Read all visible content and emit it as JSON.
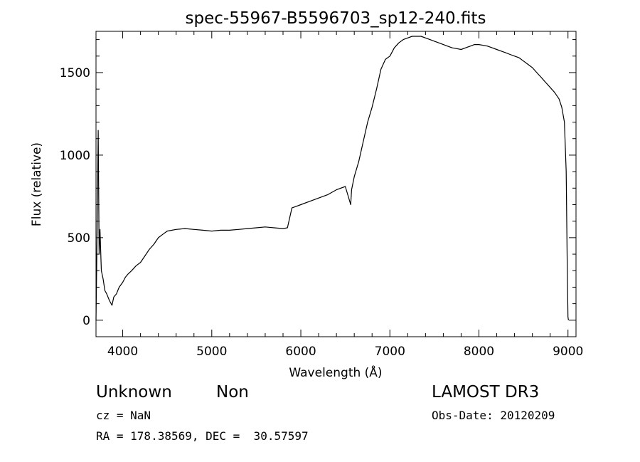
{
  "chart_data": {
    "type": "line",
    "title": "spec-55967-B5596703_sp12-240.fits",
    "xlabel": "Wavelength (Å)",
    "ylabel": "Flux (relative)",
    "xlim": [
      3700,
      9090
    ],
    "ylim": [
      -100,
      1750
    ],
    "xticks": [
      4000,
      5000,
      6000,
      7000,
      8000,
      9000
    ],
    "yticks": [
      0,
      500,
      1000,
      1500
    ],
    "series": [
      {
        "name": "flux",
        "x": [
          3700,
          3715,
          3725,
          3735,
          3745,
          3760,
          3780,
          3800,
          3820,
          3850,
          3880,
          3900,
          3930,
          3960,
          4000,
          4030,
          4060,
          4100,
          4150,
          4200,
          4250,
          4300,
          4350,
          4400,
          4450,
          4500,
          4600,
          4700,
          4800,
          4900,
          5000,
          5100,
          5200,
          5300,
          5400,
          5500,
          5600,
          5700,
          5800,
          5850,
          5900,
          5950,
          6000,
          6100,
          6200,
          6300,
          6400,
          6500,
          6560,
          6570,
          6600,
          6650,
          6700,
          6750,
          6800,
          6850,
          6900,
          6950,
          7000,
          7050,
          7100,
          7150,
          7200,
          7250,
          7300,
          7350,
          7400,
          7450,
          7500,
          7550,
          7600,
          7650,
          7700,
          7750,
          7800,
          7850,
          7900,
          7950,
          8000,
          8050,
          8100,
          8150,
          8200,
          8250,
          8300,
          8350,
          8400,
          8450,
          8500,
          8550,
          8600,
          8650,
          8700,
          8750,
          8800,
          8850,
          8900,
          8930,
          8960,
          8980,
          8990,
          9000,
          9005
        ],
        "values": [
          0,
          650,
          1150,
          400,
          550,
          300,
          250,
          180,
          160,
          120,
          90,
          140,
          160,
          200,
          230,
          260,
          280,
          300,
          330,
          350,
          390,
          430,
          460,
          500,
          520,
          540,
          550,
          555,
          550,
          545,
          540,
          545,
          545,
          550,
          555,
          560,
          565,
          560,
          555,
          560,
          680,
          690,
          700,
          720,
          740,
          760,
          790,
          810,
          700,
          790,
          870,
          960,
          1080,
          1200,
          1290,
          1400,
          1520,
          1580,
          1600,
          1650,
          1680,
          1700,
          1710,
          1720,
          1720,
          1720,
          1710,
          1700,
          1690,
          1680,
          1670,
          1660,
          1650,
          1645,
          1640,
          1650,
          1660,
          1670,
          1670,
          1665,
          1660,
          1650,
          1640,
          1630,
          1620,
          1610,
          1600,
          1590,
          1570,
          1550,
          1530,
          1500,
          1470,
          1440,
          1410,
          1380,
          1340,
          1290,
          1200,
          900,
          400,
          20,
          0
        ]
      }
    ]
  },
  "info": {
    "object_class": "Unknown",
    "subclass": "Non",
    "survey": "LAMOST DR3",
    "redshift": "cz = NaN",
    "obs_date": "Obs-Date: 20120209",
    "coords": "RA = 178.38569, DEC =  30.57597"
  }
}
